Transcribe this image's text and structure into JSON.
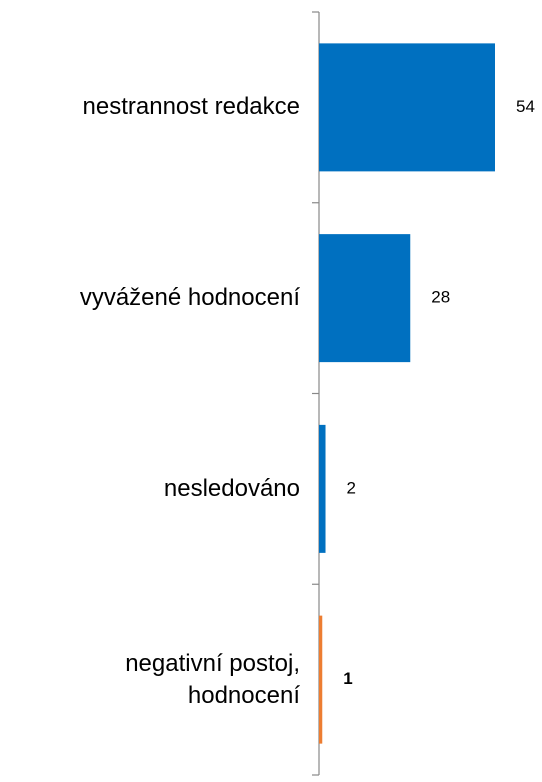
{
  "chart_data": {
    "type": "bar",
    "orientation": "horizontal",
    "categories": [
      "nestrannost redakce",
      "vyvážené hodnocení",
      "nesledováno",
      "negativní postoj, hodnocení"
    ],
    "values": [
      54,
      28,
      2,
      1
    ],
    "colors": [
      "#0070c0",
      "#0070c0",
      "#0070c0",
      "#ed7d31"
    ]
  }
}
